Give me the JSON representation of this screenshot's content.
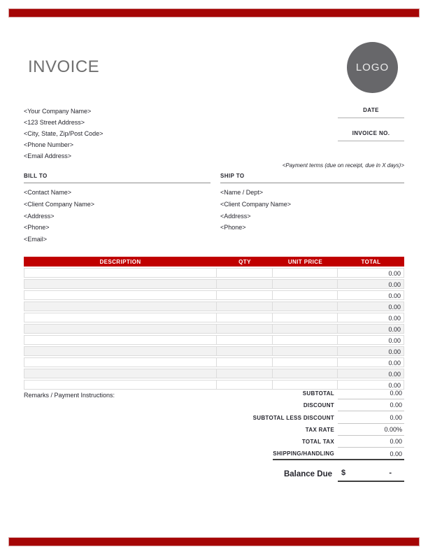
{
  "page": {
    "title": "INVOICE",
    "logo_text": "LOGO"
  },
  "colors": {
    "accent_bar_red": "#a50505",
    "table_header_red": "#c00000",
    "title_gray": "#6f6f6f",
    "logo_gray": "#67676a",
    "text_dark": "#26262e"
  },
  "company": {
    "lines": [
      "<Your Company Name>",
      "<123 Street Address>",
      "<City, State, Zip/Post Code>",
      "<Phone Number>",
      "<Email Address>"
    ]
  },
  "meta": {
    "date_label": "DATE",
    "invoice_no_label": "INVOICE NO.",
    "payment_terms": "<Payment terms (due on receipt, due in X days)>"
  },
  "bill_to": {
    "label": "BILL TO",
    "lines": [
      "<Contact Name>",
      "<Client Company Name>",
      "<Address>",
      "<Phone>",
      "<Email>"
    ]
  },
  "ship_to": {
    "label": "SHIP TO",
    "lines": [
      "<Name / Dept>",
      "<Client Company Name>",
      "<Address>",
      "<Phone>"
    ]
  },
  "items_table": {
    "headers": [
      "DESCRIPTION",
      "QTY",
      "UNIT PRICE",
      "TOTAL"
    ],
    "rows": [
      {
        "description": "",
        "qty": "",
        "unit_price": "",
        "total": "0.00"
      },
      {
        "description": "",
        "qty": "",
        "unit_price": "",
        "total": "0.00"
      },
      {
        "description": "",
        "qty": "",
        "unit_price": "",
        "total": "0.00"
      },
      {
        "description": "",
        "qty": "",
        "unit_price": "",
        "total": "0.00"
      },
      {
        "description": "",
        "qty": "",
        "unit_price": "",
        "total": "0.00"
      },
      {
        "description": "",
        "qty": "",
        "unit_price": "",
        "total": "0.00"
      },
      {
        "description": "",
        "qty": "",
        "unit_price": "",
        "total": "0.00"
      },
      {
        "description": "",
        "qty": "",
        "unit_price": "",
        "total": "0.00"
      },
      {
        "description": "",
        "qty": "",
        "unit_price": "",
        "total": "0.00"
      },
      {
        "description": "",
        "qty": "",
        "unit_price": "",
        "total": "0.00"
      },
      {
        "description": "",
        "qty": "",
        "unit_price": "",
        "total": "0.00"
      }
    ]
  },
  "remarks_label": "Remarks / Payment Instructions:",
  "totals": {
    "rows": [
      {
        "label": "SUBTOTAL",
        "value": "0.00"
      },
      {
        "label": "DISCOUNT",
        "value": "0.00"
      },
      {
        "label": "SUBTOTAL LESS DISCOUNT",
        "value": "0.00"
      },
      {
        "label": "TAX RATE",
        "value": "0.00%"
      },
      {
        "label": "TOTAL TAX",
        "value": "0.00"
      },
      {
        "label": "SHIPPING/HANDLING",
        "value": "0.00"
      }
    ],
    "balance_due": {
      "label": "Balance Due",
      "currency": "$",
      "value": "-"
    }
  }
}
